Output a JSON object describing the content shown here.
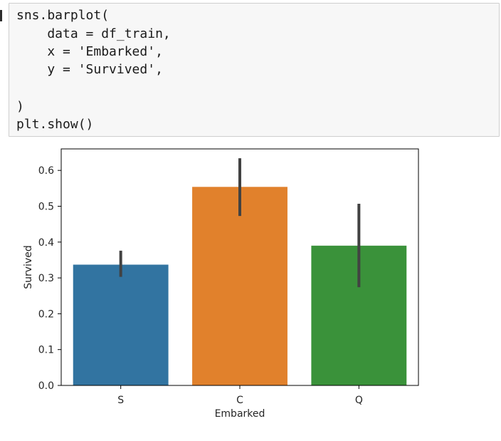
{
  "code_cell": {
    "lines": [
      "sns.barplot(",
      "    data = df_train,",
      "    x = 'Embarked',",
      "    y = 'Survived',",
      "",
      ")",
      "plt.show()"
    ]
  },
  "chart_data": {
    "type": "bar",
    "categories": [
      "S",
      "C",
      "Q"
    ],
    "values": [
      0.337,
      0.554,
      0.39
    ],
    "error_low": [
      0.303,
      0.473,
      0.274
    ],
    "error_high": [
      0.376,
      0.634,
      0.507
    ],
    "colors": [
      "#3274a1",
      "#e1812c",
      "#3a923a"
    ],
    "errorbar_color": "#424242",
    "xlabel": "Embarked",
    "ylabel": "Survived",
    "ylim": [
      0.0,
      0.66
    ],
    "yticks": [
      0.0,
      0.1,
      0.2,
      0.3,
      0.4,
      0.5,
      0.6
    ],
    "ytick_labels": [
      "0.0",
      "0.1",
      "0.2",
      "0.3",
      "0.4",
      "0.5",
      "0.6"
    ],
    "grid": false
  }
}
